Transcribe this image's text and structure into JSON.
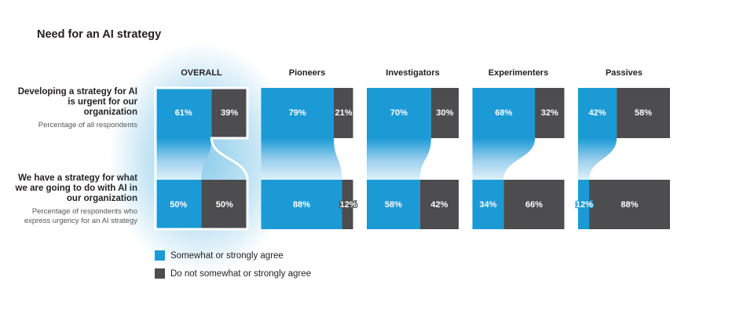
{
  "chart_data": {
    "type": "bar",
    "title": "Need for an AI strategy",
    "rows": [
      {
        "label": "Developing a strategy for AI is urgent for our organization",
        "note": "Percentage of all respondents"
      },
      {
        "label": "We have a strategy for what we are going to do with AI in our organization",
        "note": "Percentage of respondents who express urgency for an AI strategy"
      }
    ],
    "categories": [
      "OVERALL",
      "Pioneers",
      "Investigators",
      "Experimenters",
      "Passives"
    ],
    "series": [
      {
        "name": "Somewhat or strongly agree",
        "color": "#1b9ad6",
        "top": [
          61,
          79,
          70,
          68,
          42
        ],
        "bottom": [
          50,
          88,
          58,
          34,
          12
        ]
      },
      {
        "name": "Do not somewhat or strongly agree",
        "color": "#4d4d4f",
        "top": [
          39,
          21,
          30,
          32,
          58
        ],
        "bottom": [
          50,
          12,
          42,
          66,
          88
        ]
      }
    ],
    "labels": {
      "top": [
        [
          "61%",
          "39%"
        ],
        [
          "79%",
          "21%"
        ],
        [
          "70%",
          "30%"
        ],
        [
          "68%",
          "32%"
        ],
        [
          "42%",
          "58%"
        ]
      ],
      "bottom": [
        [
          "50%",
          "50%"
        ],
        [
          "88%",
          "12%"
        ],
        [
          "58%",
          "42%"
        ],
        [
          "34%",
          "66%"
        ],
        [
          "12%",
          "88%"
        ]
      ]
    },
    "highlighted_category": "OVERALL",
    "ylim": [
      0,
      100
    ]
  }
}
